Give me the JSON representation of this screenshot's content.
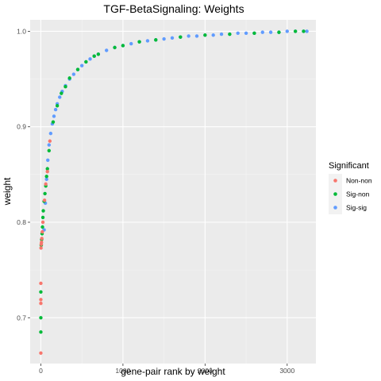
{
  "chart_data": {
    "type": "scatter",
    "title": "TGF-BetaSignaling: Weights",
    "xlabel": "gene-pair rank by weight",
    "ylabel": "weight",
    "xlim": [
      -130,
      3350
    ],
    "ylim": [
      0.652,
      1.012
    ],
    "x_ticks": [
      0,
      1000,
      2000,
      3000
    ],
    "x_tick_labels": [
      "0",
      "1000",
      "2000",
      "3000"
    ],
    "y_ticks": [
      0.7,
      0.8,
      0.9,
      1.0
    ],
    "y_tick_labels": [
      "0.7",
      "0.8",
      "0.9",
      "1.0"
    ],
    "grid": true,
    "legend": {
      "title": "Significant",
      "placement": "right",
      "entries": [
        {
          "label": "Non-non",
          "color": "#F8766D"
        },
        {
          "label": "Sig-non",
          "color": "#00BA38"
        },
        {
          "label": "Sig-sig",
          "color": "#619CFF"
        }
      ]
    },
    "series": [
      {
        "name": "Sig-sig",
        "color": "#619CFF",
        "x": [
          40,
          55,
          70,
          85,
          100,
          120,
          140,
          160,
          180,
          200,
          230,
          260,
          300,
          350,
          400,
          450,
          500,
          550,
          600,
          650,
          700,
          800,
          900,
          1000,
          1100,
          1200,
          1300,
          1400,
          1500,
          1600,
          1700,
          1800,
          1900,
          2000,
          2100,
          2200,
          2300,
          2400,
          2500,
          2600,
          2700,
          2800,
          2900,
          3000,
          3100,
          3200,
          3240
        ],
        "y": [
          0.792,
          0.82,
          0.845,
          0.865,
          0.881,
          0.893,
          0.903,
          0.911,
          0.918,
          0.924,
          0.931,
          0.937,
          0.943,
          0.95,
          0.955,
          0.96,
          0.964,
          0.968,
          0.971,
          0.974,
          0.976,
          0.98,
          0.983,
          0.985,
          0.987,
          0.989,
          0.99,
          0.991,
          0.992,
          0.993,
          0.994,
          0.995,
          0.995,
          0.996,
          0.996,
          0.997,
          0.997,
          0.998,
          0.998,
          0.998,
          0.999,
          0.999,
          0.999,
          1.0,
          1.0,
          1.0,
          1.0
        ]
      },
      {
        "name": "Sig-non",
        "color": "#00BA38",
        "x": [
          0,
          0,
          0,
          5,
          10,
          15,
          20,
          25,
          30,
          40,
          50,
          60,
          70,
          80,
          100,
          150,
          200,
          250,
          300,
          350,
          450,
          550,
          650,
          700,
          900,
          1000,
          1200,
          1400,
          1700,
          2000,
          2300,
          2600,
          2900,
          3100,
          3200
        ],
        "y": [
          0.685,
          0.7,
          0.727,
          0.776,
          0.782,
          0.788,
          0.795,
          0.805,
          0.812,
          0.822,
          0.83,
          0.838,
          0.848,
          0.856,
          0.875,
          0.905,
          0.922,
          0.935,
          0.942,
          0.951,
          0.96,
          0.968,
          0.974,
          0.976,
          0.983,
          0.985,
          0.989,
          0.991,
          0.994,
          0.996,
          0.997,
          0.998,
          0.999,
          1.0,
          1.0
        ]
      },
      {
        "name": "Non-non",
        "color": "#F8766D",
        "x": [
          0,
          0,
          0,
          0,
          2,
          5,
          8,
          12,
          18,
          25,
          45,
          60,
          80,
          110
        ],
        "y": [
          0.663,
          0.715,
          0.719,
          0.736,
          0.773,
          0.777,
          0.779,
          0.783,
          0.79,
          0.8,
          0.823,
          0.84,
          0.853,
          0.885
        ]
      }
    ]
  }
}
